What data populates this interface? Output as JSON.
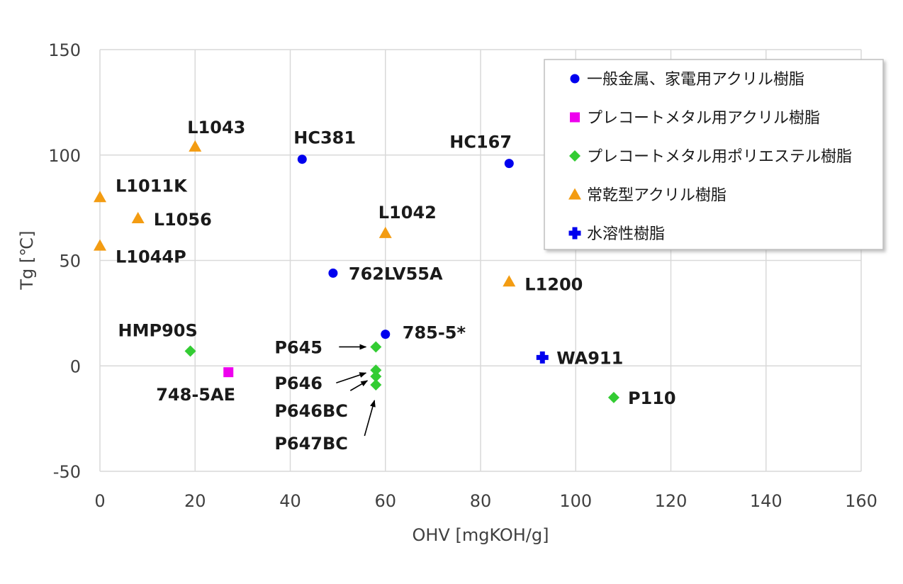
{
  "chart_data": {
    "type": "scatter",
    "xlabel": "OHV [mgKOH/g]",
    "ylabel": "Tg [℃]",
    "xlim": [
      0,
      160
    ],
    "ylim": [
      -50,
      150
    ],
    "x_ticks": [
      0,
      20,
      40,
      60,
      80,
      100,
      120,
      140,
      160
    ],
    "y_ticks": [
      -50,
      0,
      50,
      100,
      150
    ],
    "grid": true,
    "legend_position": "top-right",
    "series": [
      {
        "name": "一般金属、家電用アクリル樹脂",
        "marker": "circle",
        "color": "#0000ee",
        "points": [
          {
            "x": 42.5,
            "y": 98,
            "label": "HC381"
          },
          {
            "x": 86,
            "y": 96,
            "label": "HC167"
          },
          {
            "x": 49,
            "y": 44,
            "label": "762LV55A"
          },
          {
            "x": 60,
            "y": 15,
            "label": "785-5*"
          }
        ]
      },
      {
        "name": "プレコートメタル用アクリル樹脂",
        "marker": "square",
        "color": "#ee00ee",
        "points": [
          {
            "x": 27,
            "y": -3,
            "label": "748-5AE"
          }
        ]
      },
      {
        "name": "プレコートメタル用ポリエステル樹脂",
        "marker": "diamond",
        "color": "#33cc33",
        "points": [
          {
            "x": 19,
            "y": 7,
            "label": "HMP90S"
          },
          {
            "x": 58,
            "y": 9,
            "label": "P645"
          },
          {
            "x": 58,
            "y": -2,
            "label": "P646"
          },
          {
            "x": 58,
            "y": -5,
            "label": "P646BC"
          },
          {
            "x": 58,
            "y": -9,
            "label": "P647BC"
          },
          {
            "x": 108,
            "y": -15,
            "label": "P110"
          }
        ]
      },
      {
        "name": "常乾型アクリル樹脂",
        "marker": "triangle",
        "color": "#f39c12",
        "points": [
          {
            "x": 20,
            "y": 104,
            "label": "L1043"
          },
          {
            "x": 0,
            "y": 80,
            "label": "L1011K"
          },
          {
            "x": 8,
            "y": 70,
            "label": "L1056"
          },
          {
            "x": 0,
            "y": 57,
            "label": "L1044P"
          },
          {
            "x": 60,
            "y": 63,
            "label": "L1042"
          },
          {
            "x": 86,
            "y": 40,
            "label": "L1200"
          }
        ]
      },
      {
        "name": "水溶性樹脂",
        "marker": "plus",
        "color": "#0000ee",
        "points": [
          {
            "x": 93,
            "y": 4,
            "label": "WA911"
          }
        ]
      }
    ]
  }
}
